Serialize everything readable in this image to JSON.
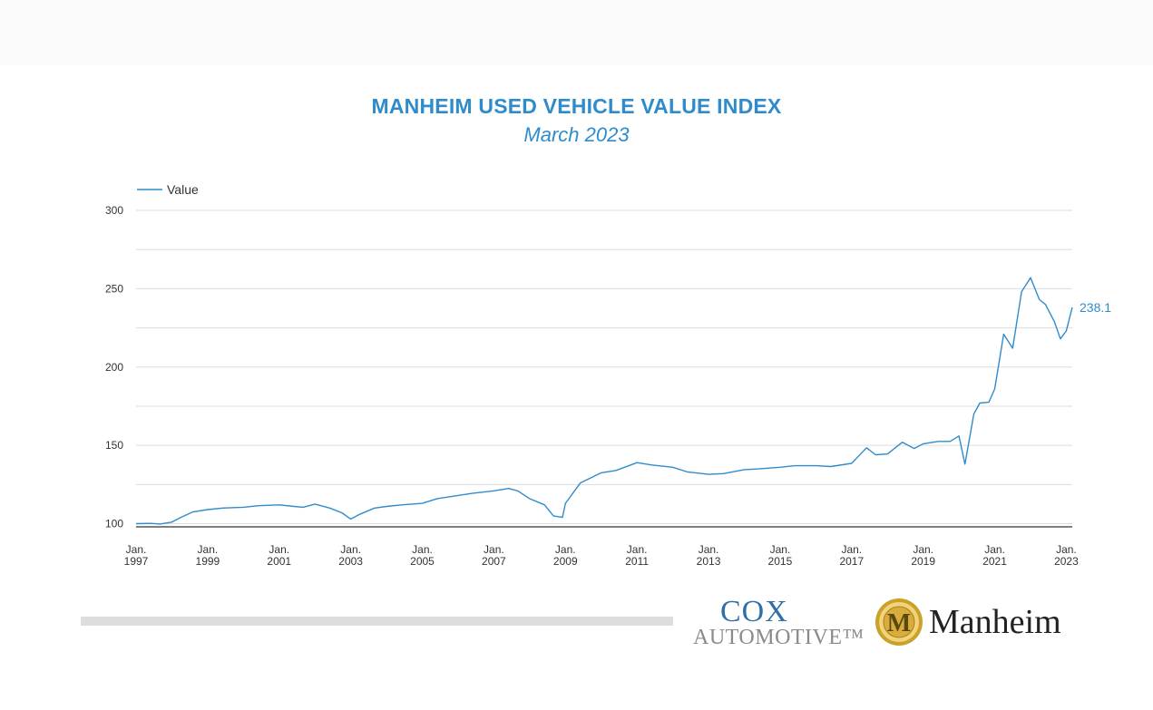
{
  "header": {
    "title": "MANHEIM USED VEHICLE VALUE INDEX",
    "subtitle": "March 2023"
  },
  "logos": {
    "cox_line1": "COX",
    "cox_line2": "AUTOMOTIVE™",
    "manheim_name": "Manheim",
    "manheim_emblem_letter": "M"
  },
  "colors": {
    "line": "#2f8ccc",
    "title": "#2f8ccc",
    "grid": "#dddddd",
    "axis": "#555555"
  },
  "chart_data": {
    "type": "line",
    "title": "MANHEIM USED VEHICLE VALUE INDEX",
    "subtitle": "March 2023",
    "legend": {
      "position": "top-left",
      "entries": [
        "Value"
      ]
    },
    "xlabel": "",
    "ylabel": "",
    "ylim": [
      98,
      300
    ],
    "xlim": [
      "1997-01",
      "2023-03"
    ],
    "y_ticks": [
      100,
      150,
      200,
      250,
      300
    ],
    "grid": true,
    "x_ticks": [
      {
        "date": "1997-01",
        "label": [
          "Jan.",
          "1997"
        ]
      },
      {
        "date": "1999-01",
        "label": [
          "Jan.",
          "1999"
        ]
      },
      {
        "date": "2001-01",
        "label": [
          "Jan.",
          "2001"
        ]
      },
      {
        "date": "2003-01",
        "label": [
          "Jan.",
          "2003"
        ]
      },
      {
        "date": "2005-01",
        "label": [
          "Jan.",
          "2005"
        ]
      },
      {
        "date": "2007-01",
        "label": [
          "Jan.",
          "2007"
        ]
      },
      {
        "date": "2009-01",
        "label": [
          "Jan.",
          "2009"
        ]
      },
      {
        "date": "2011-01",
        "label": [
          "Jan.",
          "2011"
        ]
      },
      {
        "date": "2013-01",
        "label": [
          "Jan.",
          "2013"
        ]
      },
      {
        "date": "2015-01",
        "label": [
          "Jan.",
          "2015"
        ]
      },
      {
        "date": "2017-01",
        "label": [
          "Jan.",
          "2017"
        ]
      },
      {
        "date": "2019-01",
        "label": [
          "Jan.",
          "2019"
        ]
      },
      {
        "date": "2021-01",
        "label": [
          "Jan.",
          "2021"
        ]
      },
      {
        "date": "2023-01",
        "label": [
          "Jan.",
          "2023"
        ]
      }
    ],
    "last_value_label": "238.1",
    "series": [
      {
        "name": "Value",
        "points": [
          [
            "1997-01",
            100.0
          ],
          [
            "1997-06",
            100.2
          ],
          [
            "1997-09",
            99.8
          ],
          [
            "1998-01",
            101.0
          ],
          [
            "1998-04",
            104.0
          ],
          [
            "1998-08",
            107.5
          ],
          [
            "1999-01",
            109.0
          ],
          [
            "1999-06",
            110.0
          ],
          [
            "2000-01",
            110.5
          ],
          [
            "2000-06",
            111.5
          ],
          [
            "2001-01",
            112.0
          ],
          [
            "2001-06",
            111.0
          ],
          [
            "2001-09",
            110.5
          ],
          [
            "2002-01",
            112.5
          ],
          [
            "2002-06",
            110.0
          ],
          [
            "2002-10",
            107.0
          ],
          [
            "2003-01",
            103.0
          ],
          [
            "2003-04",
            106.0
          ],
          [
            "2003-09",
            110.0
          ],
          [
            "2004-01",
            111.0
          ],
          [
            "2004-06",
            112.0
          ],
          [
            "2005-01",
            113.0
          ],
          [
            "2005-06",
            116.0
          ],
          [
            "2006-01",
            118.0
          ],
          [
            "2006-06",
            119.5
          ],
          [
            "2007-01",
            121.0
          ],
          [
            "2007-06",
            122.5
          ],
          [
            "2007-09",
            121.0
          ],
          [
            "2008-01",
            116.0
          ],
          [
            "2008-06",
            112.0
          ],
          [
            "2008-09",
            105.0
          ],
          [
            "2008-12",
            104.0
          ],
          [
            "2009-01",
            113.0
          ],
          [
            "2009-06",
            126.0
          ],
          [
            "2010-01",
            132.5
          ],
          [
            "2010-06",
            134.0
          ],
          [
            "2011-01",
            139.0
          ],
          [
            "2011-06",
            137.5
          ],
          [
            "2012-01",
            136.0
          ],
          [
            "2012-06",
            133.0
          ],
          [
            "2013-01",
            131.5
          ],
          [
            "2013-06",
            132.0
          ],
          [
            "2014-01",
            134.5
          ],
          [
            "2014-06",
            135.0
          ],
          [
            "2015-01",
            136.0
          ],
          [
            "2015-06",
            137.0
          ],
          [
            "2016-01",
            137.0
          ],
          [
            "2016-06",
            136.5
          ],
          [
            "2017-01",
            138.5
          ],
          [
            "2017-06",
            148.5
          ],
          [
            "2017-09",
            144.0
          ],
          [
            "2018-01",
            144.5
          ],
          [
            "2018-06",
            152.0
          ],
          [
            "2018-10",
            148.0
          ],
          [
            "2019-01",
            151.0
          ],
          [
            "2019-06",
            152.5
          ],
          [
            "2019-10",
            152.5
          ],
          [
            "2020-01",
            156.0
          ],
          [
            "2020-03",
            138.0
          ],
          [
            "2020-06",
            170.0
          ],
          [
            "2020-08",
            177.0
          ],
          [
            "2020-11",
            177.5
          ],
          [
            "2021-01",
            186.0
          ],
          [
            "2021-04",
            221.0
          ],
          [
            "2021-07",
            212.0
          ],
          [
            "2021-10",
            248.0
          ],
          [
            "2022-01",
            257.0
          ],
          [
            "2022-04",
            243.0
          ],
          [
            "2022-06",
            240.0
          ],
          [
            "2022-09",
            229.0
          ],
          [
            "2022-11",
            218.0
          ],
          [
            "2023-01",
            223.0
          ],
          [
            "2023-03",
            238.1
          ]
        ]
      }
    ]
  }
}
